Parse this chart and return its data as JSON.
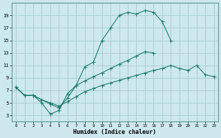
{
  "xlabel": "Humidex (Indice chaleur)",
  "bg_color": "#cde8ee",
  "grid_color": "#aacdd5",
  "line_color": "#1a7a6e",
  "xlim": [
    -0.5,
    23.5
  ],
  "ylim": [
    2,
    21
  ],
  "xticks": [
    0,
    1,
    2,
    3,
    4,
    5,
    6,
    7,
    8,
    9,
    10,
    11,
    12,
    13,
    14,
    15,
    16,
    17,
    18,
    19,
    20,
    21,
    22,
    23
  ],
  "yticks": [
    3,
    5,
    7,
    9,
    11,
    13,
    15,
    17,
    19
  ],
  "line1_y": [
    7.5,
    6.2,
    6.2,
    5.0,
    3.2,
    3.8,
    6.5,
    7.8,
    10.8,
    11.5,
    15.0,
    17.0,
    19.0,
    19.5,
    19.2,
    19.8,
    19.5,
    18.0,
    15.0,
    null,
    null,
    null,
    null,
    null
  ],
  "line2_y": [
    7.5,
    6.2,
    6.2,
    5.5,
    4.8,
    4.2,
    5.8,
    7.8,
    8.5,
    9.2,
    9.8,
    10.5,
    11.2,
    11.8,
    12.5,
    13.2,
    13.0,
    null,
    null,
    null,
    null,
    null,
    null,
    null
  ],
  "line3_y": [
    7.5,
    6.2,
    6.2,
    5.5,
    5.0,
    4.5,
    5.2,
    6.0,
    6.8,
    7.3,
    7.8,
    8.2,
    8.6,
    9.0,
    9.4,
    9.8,
    10.2,
    10.5,
    11.0,
    10.5,
    10.2,
    11.0,
    9.5,
    9.2
  ]
}
